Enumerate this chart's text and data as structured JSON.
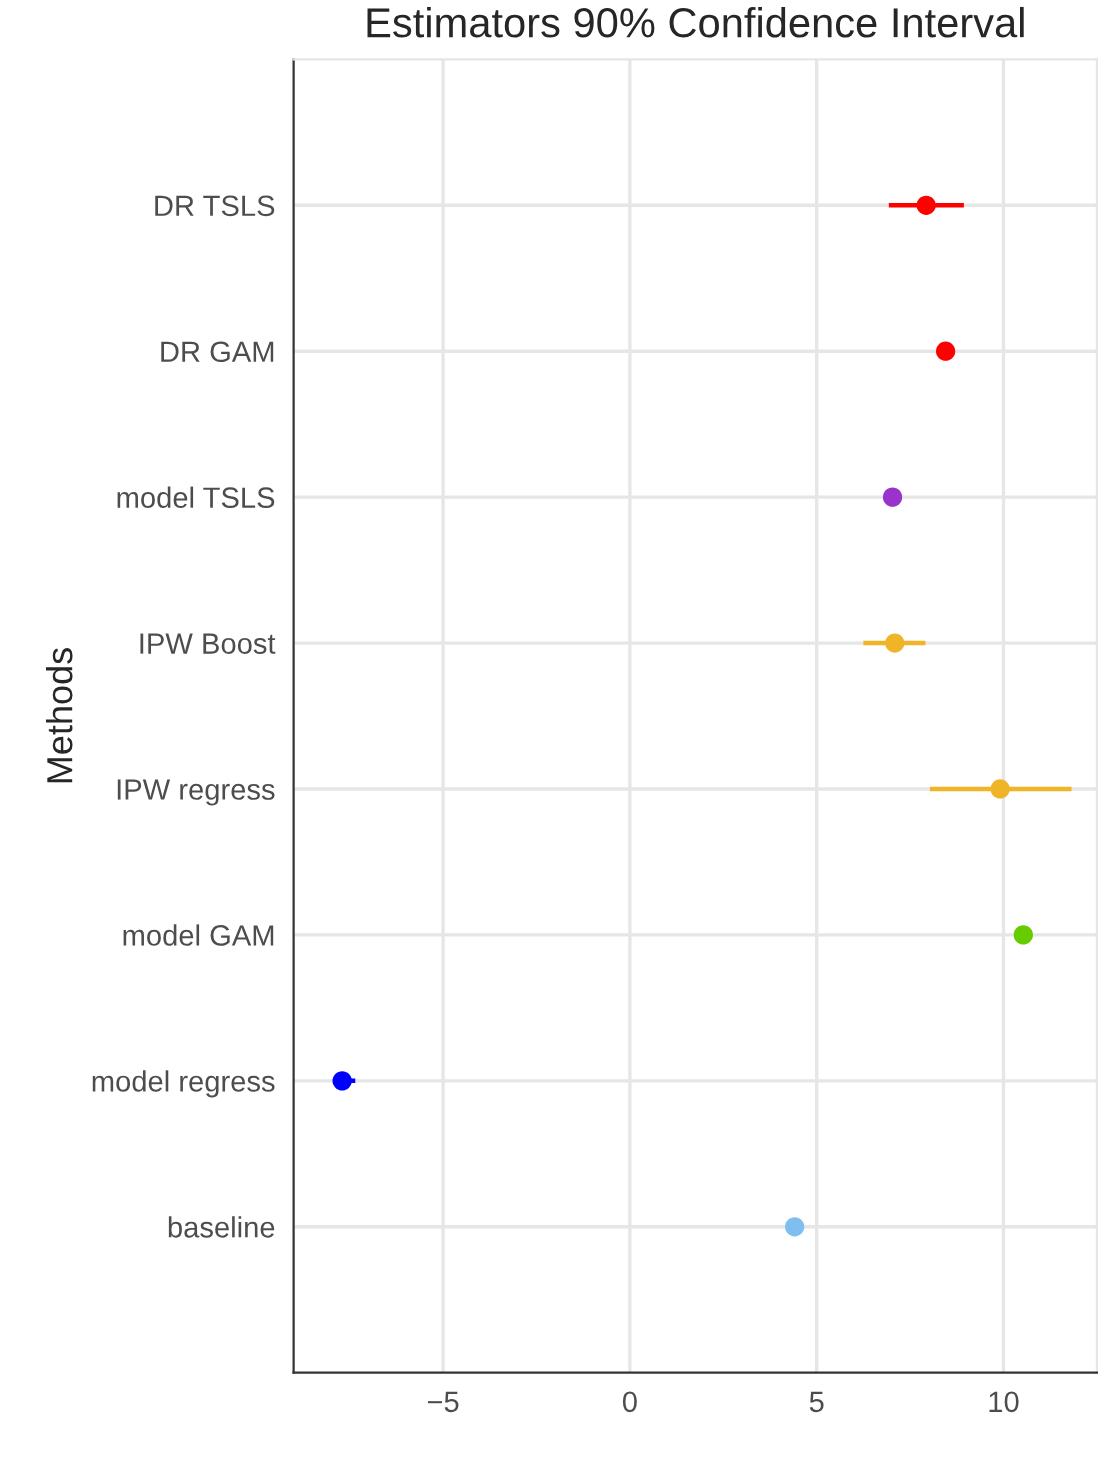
{
  "chart_data": {
    "type": "scatter",
    "orientation": "horizontal",
    "title": "Estimators 90% Confidence Interval",
    "ylabel": "Methods",
    "categories": [
      "DR TSLS",
      "DR GAM",
      "model TSLS",
      "IPW Boost",
      "IPW regress",
      "model GAM",
      "model regress",
      "baseline"
    ],
    "values": [
      7.93,
      8.45,
      7.03,
      7.09,
      9.91,
      10.53,
      -7.7,
      4.41
    ],
    "errors": [
      [
        6.93,
        8.94
      ],
      null,
      null,
      [
        6.25,
        7.91
      ],
      [
        8.03,
        11.82
      ],
      null,
      [
        -7.95,
        -7.35
      ],
      null
    ],
    "colors": [
      "#ff0000",
      "#ff0000",
      "#9933cc",
      "#f0b429",
      "#f0b429",
      "#66cc00",
      "#0000ff",
      "#7fbfef"
    ],
    "xlim": [
      -9,
      12.5
    ],
    "xticks": [
      {
        "value": -5,
        "label": "−5"
      },
      0,
      5,
      10
    ],
    "grid": true,
    "marker": "circle"
  }
}
